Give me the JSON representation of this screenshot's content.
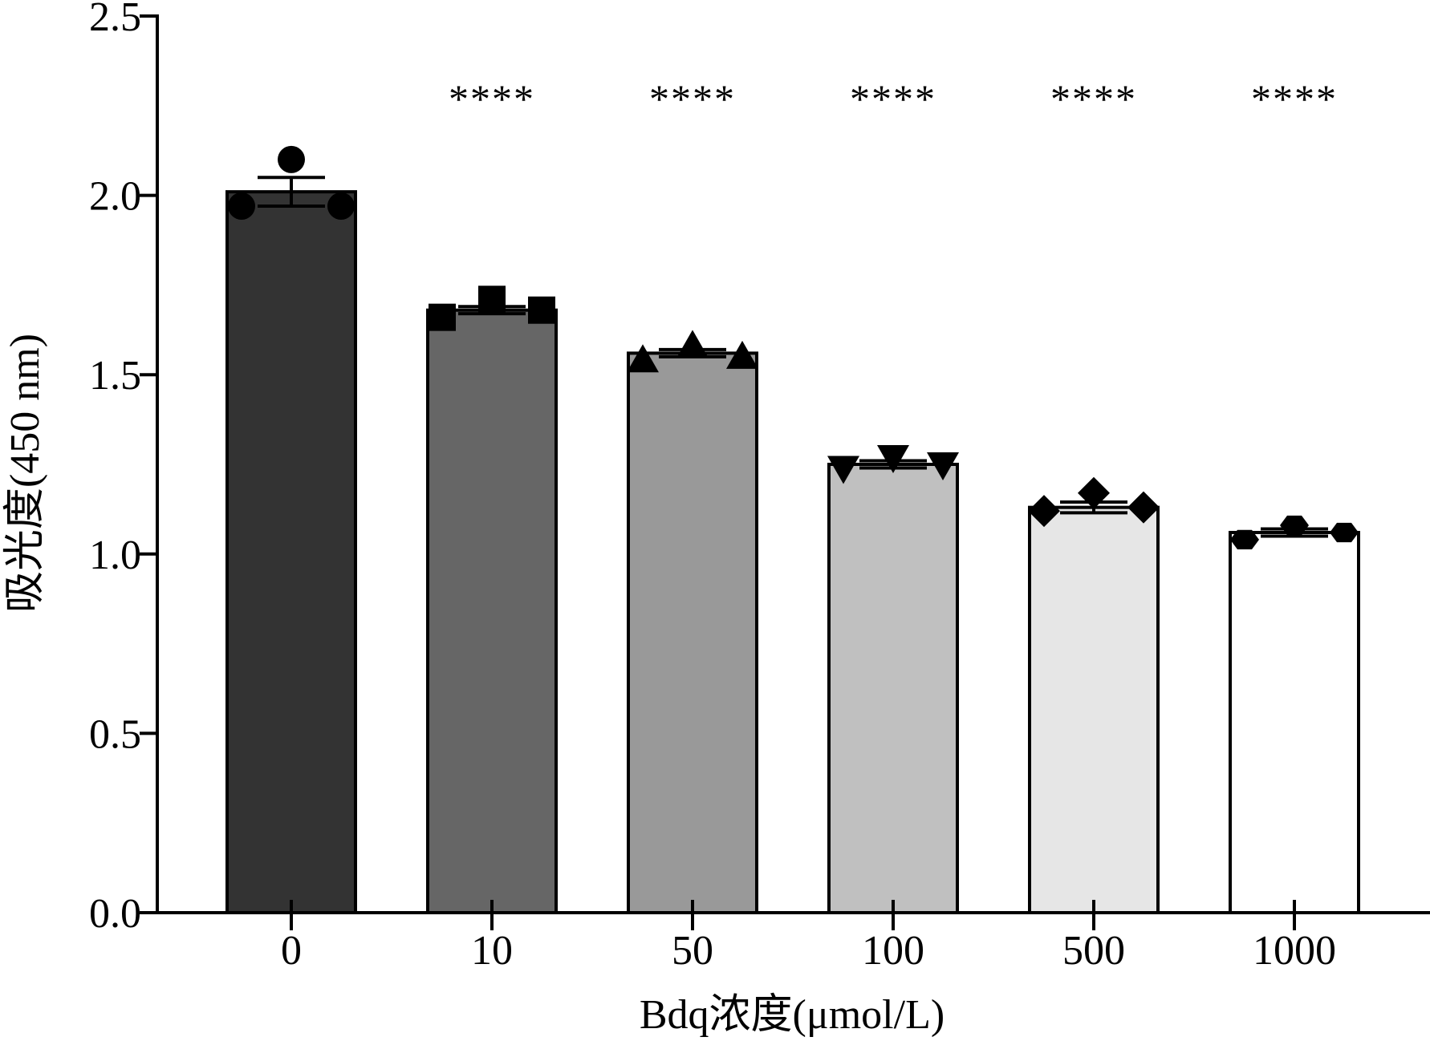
{
  "chart_data": {
    "type": "bar",
    "title": "",
    "xlabel": "Bdq浓度(μmol/L)",
    "ylabel": "吸光度(450 nm)",
    "ylim": [
      0,
      2.5
    ],
    "yticks": [
      "0.0",
      "0.5",
      "1.0",
      "1.5",
      "2.0",
      "2.5"
    ],
    "categories": [
      "0",
      "10",
      "50",
      "100",
      "500",
      "1000"
    ],
    "values": [
      2.01,
      1.68,
      1.56,
      1.25,
      1.13,
      1.06
    ],
    "sem": [
      0.04,
      0.01,
      0.01,
      0.01,
      0.015,
      0.01
    ],
    "points": [
      [
        1.97,
        2.1,
        1.97
      ],
      [
        1.66,
        1.71,
        1.68
      ],
      [
        1.54,
        1.58,
        1.55
      ],
      [
        1.24,
        1.27,
        1.25
      ],
      [
        1.12,
        1.17,
        1.13
      ],
      [
        1.04,
        1.08,
        1.06
      ]
    ],
    "markers": [
      "circle",
      "square",
      "triangle-up",
      "triangle-down",
      "diamond",
      "hexagon"
    ],
    "bar_colors": [
      "#333333",
      "#666666",
      "#999999",
      "#c0c0c0",
      "#e6e6e6",
      "#ffffff"
    ],
    "significance": [
      "",
      "****",
      "****",
      "****",
      "****",
      "****"
    ],
    "grid": false,
    "legend": "none"
  }
}
